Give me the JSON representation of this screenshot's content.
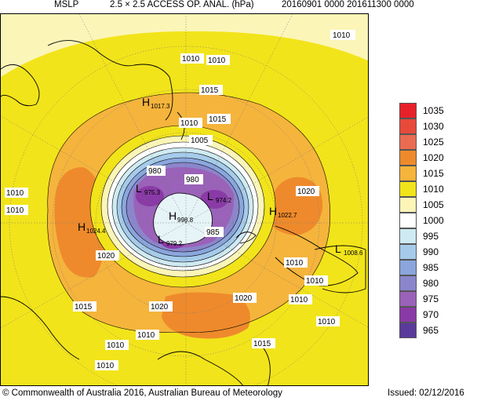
{
  "header": {
    "product": "MSLP",
    "analysis": "2.5 × 2.5 ACCESS OP. ANAL. (hPa)",
    "period": "20160901 0000 201611300 0000"
  },
  "legend": {
    "levels": [
      {
        "label": "1035",
        "color": "#e8202a"
      },
      {
        "label": "1030",
        "color": "#e84a3a"
      },
      {
        "label": "1025",
        "color": "#ea6b52"
      },
      {
        "label": "1020",
        "color": "#ee8a2c"
      },
      {
        "label": "1015",
        "color": "#f5b43c"
      },
      {
        "label": "1010",
        "color": "#f2e41a"
      },
      {
        "label": "1005",
        "color": "#fbf5b8"
      },
      {
        "label": "1000",
        "color": "#ffffff"
      },
      {
        "label": "995",
        "color": "#cfeaf2"
      },
      {
        "label": "990",
        "color": "#a6cbea"
      },
      {
        "label": "985",
        "color": "#8aa6dd"
      },
      {
        "label": "980",
        "color": "#8b86cc"
      },
      {
        "label": "975",
        "color": "#9a62b8"
      },
      {
        "label": "970",
        "color": "#8a3aa6"
      },
      {
        "label": "965",
        "color": "#5a3a9a"
      }
    ]
  },
  "map": {
    "contour_labels": [
      {
        "id": "c1010-ne",
        "text": "1010"
      },
      {
        "id": "c1010-n1",
        "text": "1010"
      },
      {
        "id": "c1010-n2",
        "text": "1010"
      },
      {
        "id": "c1015-n",
        "text": "1015"
      },
      {
        "id": "c1015-n2",
        "text": "1015"
      },
      {
        "id": "c1010-mid",
        "text": "1010"
      },
      {
        "id": "c1005",
        "text": "1005"
      },
      {
        "id": "c1010-w1",
        "text": "1010"
      },
      {
        "id": "c1010-w2",
        "text": "1010"
      },
      {
        "id": "c980-a",
        "text": "980"
      },
      {
        "id": "c980-b",
        "text": "980"
      },
      {
        "id": "c1020-e",
        "text": "1020"
      },
      {
        "id": "c985",
        "text": "985"
      },
      {
        "id": "c1020-w",
        "text": "1020"
      },
      {
        "id": "c1010-e1",
        "text": "1010"
      },
      {
        "id": "c1010-e2",
        "text": "1010"
      },
      {
        "id": "c1010-e3",
        "text": "1010"
      },
      {
        "id": "c1010-e4",
        "text": "1010"
      },
      {
        "id": "c1015-sw",
        "text": "1015"
      },
      {
        "id": "c1020-s1",
        "text": "1020"
      },
      {
        "id": "c1020-s2",
        "text": "1020"
      },
      {
        "id": "c1010-s1",
        "text": "1010"
      },
      {
        "id": "c1010-s2",
        "text": "1010"
      },
      {
        "id": "c1010-s3",
        "text": "1010"
      },
      {
        "id": "c1015-s",
        "text": "1015"
      }
    ],
    "pressure_centres": [
      {
        "id": "h-north",
        "letter": "H",
        "value": "1017.3"
      },
      {
        "id": "h-west",
        "letter": "H",
        "value": "1024.4"
      },
      {
        "id": "h-east",
        "letter": "H",
        "value": "1022.7"
      },
      {
        "id": "h-pole",
        "letter": "H",
        "value": "998.8"
      },
      {
        "id": "l-1",
        "letter": "L",
        "value": "975.3"
      },
      {
        "id": "l-2",
        "letter": "L",
        "value": "974.2"
      },
      {
        "id": "l-3",
        "letter": "L",
        "value": "979.2"
      },
      {
        "id": "l-4",
        "letter": "L",
        "value": "1008.6"
      }
    ]
  },
  "footer": {
    "copyright": "© Commonwealth of Australia 2016, Australian Bureau of Meteorology",
    "issued": "Issued: 02/12/2016"
  }
}
